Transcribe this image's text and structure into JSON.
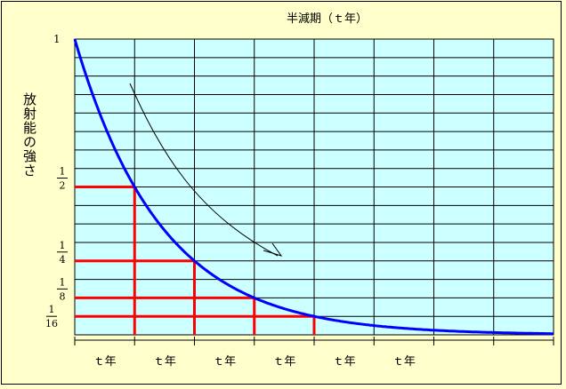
{
  "chart_data": {
    "type": "line",
    "title": "半減期（ｔ年）",
    "ylabel": "放射能の強さ",
    "x": [
      0,
      1,
      2,
      3,
      4,
      5,
      6,
      7,
      8
    ],
    "series": [
      {
        "values": [
          1,
          0.5,
          0.25,
          0.125,
          0.0625,
          0.03125,
          0.015625,
          0.0078125,
          0.00390625
        ]
      }
    ],
    "xlim": [
      0,
      8
    ],
    "ylim": [
      0,
      1
    ],
    "y_fraction_labels": [
      {
        "value": 1,
        "num": "1",
        "den": ""
      },
      {
        "value": 0.5,
        "num": "1",
        "den": "2"
      },
      {
        "value": 0.25,
        "num": "1",
        "den": "4"
      },
      {
        "value": 0.125,
        "num": "1",
        "den": "8"
      },
      {
        "value": 0.0625,
        "num": "1",
        "den": "16"
      }
    ],
    "x_interval_labels": [
      "ｔ年",
      "ｔ年",
      "ｔ年",
      "ｔ年",
      "ｔ年",
      "ｔ年",
      "",
      ""
    ],
    "highlighted_half_lives": [
      1,
      2,
      3,
      4
    ],
    "grid": true,
    "colors": {
      "plot_background": "#ccffff",
      "curve": "#0000ff",
      "highlight": "#ff0000",
      "page_background": "#ffffcc"
    }
  }
}
